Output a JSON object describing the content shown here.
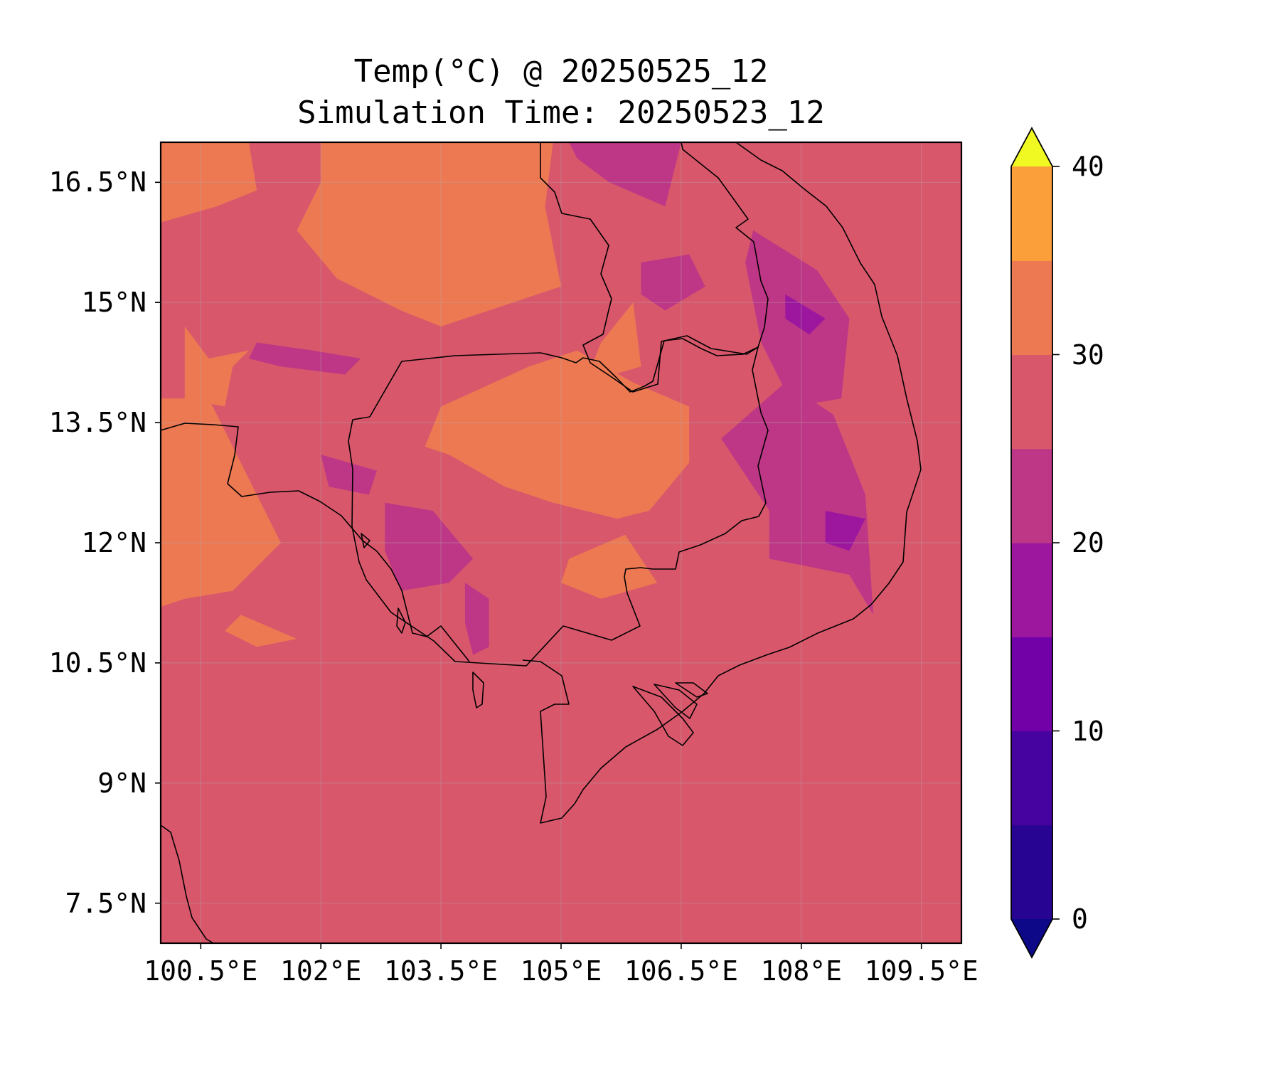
{
  "title": {
    "line1": "Temp(°C) @ 20250525_12",
    "line2": "Simulation Time: 20250523_12"
  },
  "map": {
    "projection": "PlateCarree",
    "extent": {
      "lon_min": 100.0,
      "lon_max": 110.0,
      "lat_min": 7.0,
      "lat_max": 17.0
    },
    "background_value_c": 27.5,
    "gridlines": true,
    "coastlines": true,
    "borders": true
  },
  "axes": {
    "lat_ticks": [
      {
        "value": 16.5,
        "label": "16.5°N"
      },
      {
        "value": 15.0,
        "label": "15°N"
      },
      {
        "value": 13.5,
        "label": "13.5°N"
      },
      {
        "value": 12.0,
        "label": "12°N"
      },
      {
        "value": 10.5,
        "label": "10.5°N"
      },
      {
        "value": 9.0,
        "label": "9°N"
      },
      {
        "value": 7.5,
        "label": "7.5°N"
      }
    ],
    "lon_ticks": [
      {
        "value": 100.5,
        "label": "100.5°E"
      },
      {
        "value": 102.0,
        "label": "102°E"
      },
      {
        "value": 103.5,
        "label": "103.5°E"
      },
      {
        "value": 105.0,
        "label": "105°E"
      },
      {
        "value": 106.5,
        "label": "106.5°E"
      },
      {
        "value": 108.0,
        "label": "108°E"
      },
      {
        "value": 109.5,
        "label": "109.5°E"
      }
    ]
  },
  "colorbar": {
    "colormap": "plasma",
    "extend": "both",
    "range": [
      -5,
      45
    ],
    "levels": [
      -5,
      0,
      5,
      10,
      15,
      20,
      25,
      30,
      35,
      40,
      45
    ],
    "colors": [
      "#0d0887",
      "#270592",
      "#46039f",
      "#7201a8",
      "#9c179e",
      "#bd3786",
      "#d8576b",
      "#ed7953",
      "#fb9f3a",
      "#fdca26",
      "#f0f921"
    ],
    "ticks": [
      {
        "value": 0,
        "label": "0"
      },
      {
        "value": 10,
        "label": "10"
      },
      {
        "value": 20,
        "label": "20"
      },
      {
        "value": 30,
        "label": "30"
      },
      {
        "value": 40,
        "label": "40"
      }
    ]
  },
  "regions": [
    {
      "name": "thailand-northeast-warm",
      "value_c": 32.5,
      "lonlat": [
        [
          102.0,
          17.0
        ],
        [
          104.9,
          17.0
        ],
        [
          104.8,
          16.2
        ],
        [
          105.0,
          15.2
        ],
        [
          104.4,
          15.0
        ],
        [
          103.5,
          14.7
        ],
        [
          103.0,
          14.9
        ],
        [
          102.2,
          15.3
        ],
        [
          101.7,
          15.9
        ],
        [
          102.0,
          16.5
        ]
      ]
    },
    {
      "name": "thailand-north-warm",
      "value_c": 32.5,
      "lonlat": [
        [
          100.0,
          17.0
        ],
        [
          101.1,
          17.0
        ],
        [
          101.2,
          16.4
        ],
        [
          100.7,
          16.2
        ],
        [
          100.0,
          16.0
        ]
      ]
    },
    {
      "name": "thailand-west-warm",
      "value_c": 32.5,
      "lonlat": [
        [
          100.0,
          13.8
        ],
        [
          100.6,
          13.8
        ],
        [
          100.9,
          13.2
        ],
        [
          101.3,
          12.4
        ],
        [
          101.5,
          12.0
        ],
        [
          100.9,
          11.4
        ],
        [
          100.3,
          11.3
        ],
        [
          100.0,
          11.2
        ]
      ]
    },
    {
      "name": "thailand-central-warm",
      "value_c": 32.5,
      "lonlat": [
        [
          100.3,
          14.7
        ],
        [
          100.6,
          14.3
        ],
        [
          101.1,
          14.4
        ],
        [
          100.9,
          14.2
        ],
        [
          100.8,
          13.7
        ],
        [
          100.3,
          13.8
        ]
      ]
    },
    {
      "name": "laos-cambodia-border-warm",
      "value_c": 32.5,
      "lonlat": [
        [
          105.5,
          14.5
        ],
        [
          105.9,
          15.0
        ],
        [
          106.0,
          14.2
        ],
        [
          105.3,
          14.0
        ]
      ]
    },
    {
      "name": "cambodia-central-warm",
      "value_c": 32.5,
      "lonlat": [
        [
          103.5,
          13.7
        ],
        [
          104.6,
          14.2
        ],
        [
          105.2,
          14.4
        ],
        [
          105.9,
          14.0
        ],
        [
          106.6,
          13.7
        ],
        [
          106.6,
          13.0
        ],
        [
          106.1,
          12.4
        ],
        [
          105.7,
          12.3
        ],
        [
          104.9,
          12.5
        ],
        [
          104.3,
          12.7
        ],
        [
          103.6,
          13.1
        ],
        [
          103.3,
          13.2
        ]
      ]
    },
    {
      "name": "cambodia-south-warm",
      "value_c": 32.5,
      "lonlat": [
        [
          105.1,
          11.8
        ],
        [
          105.8,
          12.1
        ],
        [
          106.2,
          11.5
        ],
        [
          105.5,
          11.3
        ],
        [
          105.0,
          11.5
        ]
      ]
    },
    {
      "name": "thailand-coast-warm",
      "value_c": 32.5,
      "lonlat": [
        [
          101.0,
          11.1
        ],
        [
          101.7,
          10.8
        ],
        [
          101.2,
          10.7
        ],
        [
          100.8,
          10.9
        ]
      ]
    },
    {
      "name": "vietnam-central-highlands-cool",
      "value_c": 22.5,
      "lonlat": [
        [
          107.0,
          13.3
        ],
        [
          107.6,
          12.4
        ],
        [
          107.6,
          11.8
        ],
        [
          108.6,
          11.6
        ],
        [
          108.9,
          11.1
        ],
        [
          108.8,
          12.6
        ],
        [
          108.4,
          13.6
        ],
        [
          107.8,
          14.0
        ]
      ]
    },
    {
      "name": "vietnam-north-highlands-cool",
      "value_c": 22.5,
      "lonlat": [
        [
          107.4,
          15.9
        ],
        [
          108.2,
          15.4
        ],
        [
          108.6,
          14.8
        ],
        [
          108.5,
          13.8
        ],
        [
          107.9,
          13.7
        ],
        [
          107.5,
          14.5
        ],
        [
          107.3,
          15.5
        ]
      ]
    },
    {
      "name": "laos-south-cool",
      "value_c": 22.5,
      "lonlat": [
        [
          105.1,
          17.0
        ],
        [
          106.5,
          17.0
        ],
        [
          106.3,
          16.2
        ],
        [
          105.6,
          16.5
        ],
        [
          105.2,
          16.8
        ]
      ]
    },
    {
      "name": "laos-bolaven-cool",
      "value_c": 22.5,
      "lonlat": [
        [
          106.0,
          15.5
        ],
        [
          106.6,
          15.6
        ],
        [
          106.8,
          15.2
        ],
        [
          106.3,
          14.9
        ],
        [
          106.0,
          15.1
        ]
      ]
    },
    {
      "name": "cambodia-west-cool",
      "value_c": 22.5,
      "lonlat": [
        [
          102.8,
          12.5
        ],
        [
          103.4,
          12.4
        ],
        [
          103.9,
          11.8
        ],
        [
          103.6,
          11.5
        ],
        [
          103.0,
          11.4
        ],
        [
          102.8,
          11.9
        ]
      ]
    },
    {
      "name": "cambodia-cardamom-cool",
      "value_c": 22.5,
      "lonlat": [
        [
          103.8,
          11.5
        ],
        [
          104.1,
          11.3
        ],
        [
          104.1,
          10.7
        ],
        [
          103.9,
          10.6
        ],
        [
          103.8,
          11.0
        ]
      ]
    },
    {
      "name": "thailand-east-cool",
      "value_c": 22.5,
      "lonlat": [
        [
          101.2,
          14.5
        ],
        [
          101.9,
          14.4
        ],
        [
          102.5,
          14.3
        ],
        [
          102.3,
          14.1
        ],
        [
          101.5,
          14.2
        ],
        [
          101.1,
          14.3
        ]
      ]
    },
    {
      "name": "thailand-border-cool",
      "value_c": 22.5,
      "lonlat": [
        [
          102.0,
          13.1
        ],
        [
          102.7,
          12.9
        ],
        [
          102.6,
          12.6
        ],
        [
          102.1,
          12.7
        ]
      ]
    },
    {
      "name": "vietnam-central-cold",
      "value_c": 17.5,
      "lonlat": [
        [
          108.3,
          12.4
        ],
        [
          108.8,
          12.3
        ],
        [
          108.6,
          11.9
        ],
        [
          108.3,
          12.0
        ]
      ]
    },
    {
      "name": "vietnam-north-cold",
      "value_c": 17.5,
      "lonlat": [
        [
          107.8,
          15.1
        ],
        [
          108.3,
          14.8
        ],
        [
          108.1,
          14.6
        ],
        [
          107.8,
          14.8
        ]
      ]
    }
  ]
}
